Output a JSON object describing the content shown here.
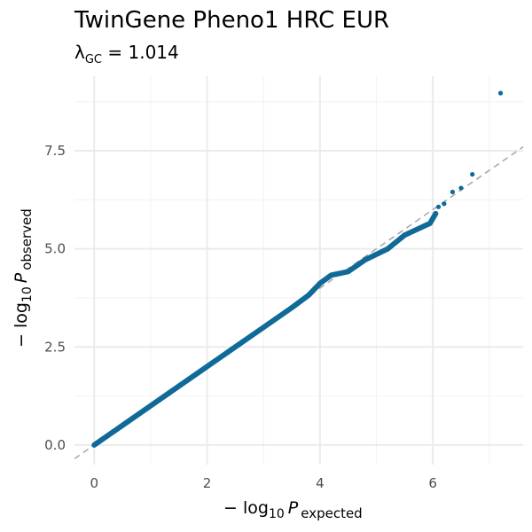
{
  "chart_data": {
    "type": "scatter",
    "title": "TwinGene Pheno1 HRC EUR",
    "subtitle": {
      "lambda_symbol": "λ",
      "lambda_subscript": "GC",
      "equals": " = ",
      "value": "1.014"
    },
    "xlabel": {
      "prefix": "− log",
      "base": "10",
      "var": "P",
      "subscript": "expected"
    },
    "ylabel": {
      "prefix": "− log",
      "base": "10",
      "var": "P",
      "subscript": "observed"
    },
    "xlim": [
      -0.35,
      7.6
    ],
    "ylim": [
      -0.5,
      9.4
    ],
    "x_ticks": [
      0,
      2,
      4,
      6
    ],
    "x_tick_labels": [
      "0",
      "2",
      "4",
      "6"
    ],
    "y_ticks": [
      0.0,
      2.5,
      5.0,
      7.5
    ],
    "y_tick_labels": [
      "0.0",
      "2.5",
      "5.0",
      "7.5"
    ],
    "grid": true,
    "reference_line": "y = x",
    "series": [
      {
        "points_line": [
          [
            0.0,
            0.0
          ],
          [
            0.5,
            0.5
          ],
          [
            1.0,
            1.0
          ],
          [
            1.5,
            1.5
          ],
          [
            2.0,
            2.0
          ],
          [
            2.5,
            2.5
          ],
          [
            3.0,
            3.0
          ],
          [
            3.5,
            3.5
          ],
          [
            3.8,
            3.82
          ],
          [
            4.0,
            4.12
          ],
          [
            4.2,
            4.33
          ],
          [
            4.5,
            4.42
          ],
          [
            4.8,
            4.72
          ],
          [
            5.2,
            5.0
          ],
          [
            5.5,
            5.35
          ],
          [
            5.8,
            5.55
          ],
          [
            5.95,
            5.65
          ],
          [
            6.05,
            5.9
          ]
        ],
        "points_scatter": [
          [
            6.1,
            6.07
          ],
          [
            6.2,
            6.15
          ],
          [
            6.35,
            6.45
          ],
          [
            6.5,
            6.55
          ],
          [
            6.7,
            6.9
          ],
          [
            7.2,
            8.97
          ]
        ]
      }
    ],
    "colors": {
      "points": "#0f6a98",
      "reference": "#a9a9a9",
      "grid_major": "#ebebeb",
      "grid_minor": "#f4f4f4"
    }
  }
}
